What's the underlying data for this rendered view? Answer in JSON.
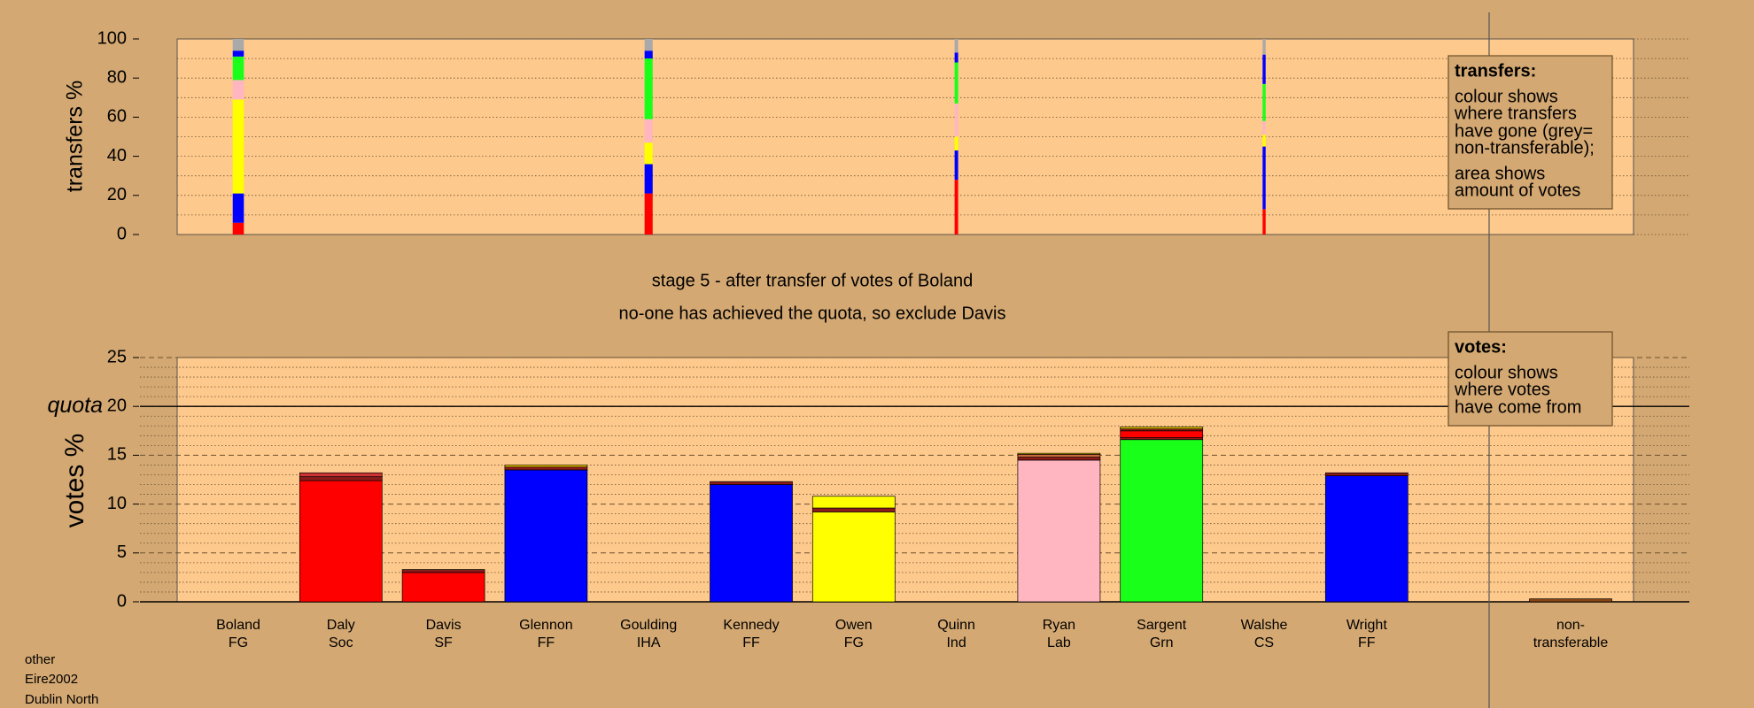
{
  "chart_data": [
    {
      "type": "transfer-bar",
      "ylabel": "transfers %",
      "ylim": [
        0,
        100
      ],
      "yticks": [
        0,
        20,
        40,
        60,
        80,
        100
      ],
      "grid_yticks": [
        0,
        10,
        20,
        30,
        40,
        50,
        60,
        70,
        80,
        90,
        100
      ],
      "colors": [
        "#ff0000",
        "#0000ff",
        "#ffff00",
        "#ffb6c1",
        "#1aff1a",
        "#0000ff",
        "#a9a9a9"
      ],
      "stacks": [
        {
          "amount": 2.2,
          "values": [
            6,
            15,
            48,
            10,
            12,
            3,
            6
          ]
        },
        null,
        null,
        null,
        {
          "amount": 1.6,
          "values": [
            21,
            15,
            11,
            12,
            31,
            4,
            6
          ]
        },
        null,
        null,
        {
          "amount": 0.7,
          "values": [
            28,
            15,
            7,
            17,
            21,
            5,
            7
          ]
        },
        null,
        null,
        {
          "amount": 0.6,
          "values": [
            13,
            32,
            6,
            7,
            19,
            15,
            8
          ]
        },
        null
      ],
      "legend": {
        "title": "transfers:",
        "lines": [
          "colour shows",
          "where transfers",
          "have gone (grey=",
          "non-transferable);",
          "area shows",
          "amount of votes"
        ]
      }
    },
    {
      "type": "stacked-bar",
      "title": "stage 5 - after transfer of votes of Boland",
      "subtitle": "no-one has achieved the quota, so exclude Davis",
      "ylabel": "votes %",
      "ylim": [
        0,
        25
      ],
      "yticks": [
        0,
        5,
        10,
        15,
        20,
        25
      ],
      "grid_yticks": [
        0,
        1,
        2,
        3,
        4,
        5,
        6,
        7,
        8,
        9,
        10,
        11,
        12,
        13,
        14,
        15,
        16,
        17,
        18,
        19,
        20,
        21,
        22,
        23,
        24,
        25
      ],
      "quota": {
        "value": 20,
        "label": "quota"
      },
      "categories": [
        [
          "Boland",
          "FG"
        ],
        [
          "Daly",
          "Soc"
        ],
        [
          "Davis",
          "SF"
        ],
        [
          "Glennon",
          "FF"
        ],
        [
          "Goulding",
          "IHA"
        ],
        [
          "Kennedy",
          "FF"
        ],
        [
          "Owen",
          "FG"
        ],
        [
          "Quinn",
          "Ind"
        ],
        [
          "Ryan",
          "Lab"
        ],
        [
          "Sargent",
          "Grn"
        ],
        [
          "Walshe",
          "CS"
        ],
        [
          "Wright",
          "FF"
        ],
        [
          "non-",
          "transferable"
        ]
      ],
      "stacks": [
        {
          "values": [],
          "colors": []
        },
        {
          "values": [
            12.4,
            0.4,
            0.4
          ],
          "colors": [
            "#ff0000",
            "#8b1a1a",
            "#cd3333"
          ]
        },
        {
          "values": [
            3.0,
            0.3
          ],
          "colors": [
            "#ff0000",
            "#8b1a1a"
          ]
        },
        {
          "values": [
            13.5,
            0.3,
            0.2
          ],
          "colors": [
            "#0000ff",
            "#8b1a1a",
            "#ffd700"
          ]
        },
        {
          "values": [],
          "colors": []
        },
        {
          "values": [
            12.0,
            0.3
          ],
          "colors": [
            "#0000ff",
            "#8b1a1a"
          ]
        },
        {
          "values": [
            9.2,
            0.4,
            1.2
          ],
          "colors": [
            "#ffff00",
            "#8b1a1a",
            "#ffff00"
          ]
        },
        {
          "values": [],
          "colors": []
        },
        {
          "values": [
            14.5,
            0.3,
            0.3,
            0.1
          ],
          "colors": [
            "#ffb6c1",
            "#8b1a1a",
            "#cd6839",
            "#ffff00"
          ]
        },
        {
          "values": [
            16.6,
            0.2,
            0.7,
            0.2,
            0.2
          ],
          "colors": [
            "#1aff1a",
            "#8b1a1a",
            "#ff0000",
            "#8b1a1a",
            "#ffd700"
          ]
        },
        {
          "values": [],
          "colors": []
        },
        {
          "values": [
            12.9,
            0.3
          ],
          "colors": [
            "#0000ff",
            "#8b1a1a"
          ]
        },
        {
          "values": [
            0.3
          ],
          "colors": [
            "#8b4513"
          ]
        }
      ],
      "legend": {
        "title": "votes:",
        "lines": [
          "colour shows",
          "where votes",
          "have come from"
        ]
      }
    }
  ],
  "footer": [
    "other",
    "Eire2002",
    "Dublin North"
  ]
}
